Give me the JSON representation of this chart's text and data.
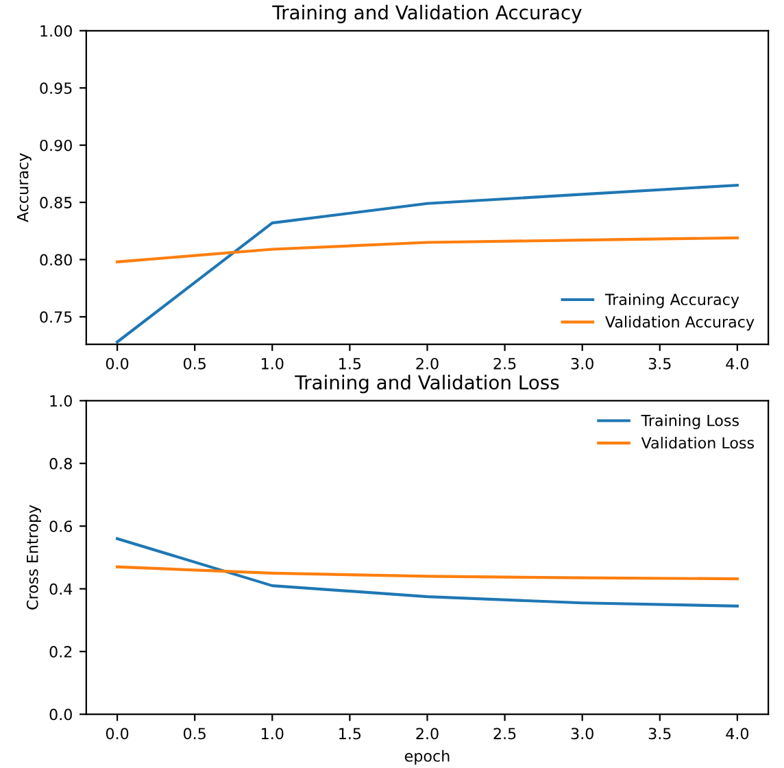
{
  "chart_data": [
    {
      "type": "line",
      "title": "Training and Validation Accuracy",
      "ylabel": "Accuracy",
      "x": [
        0,
        1,
        2,
        3,
        4
      ],
      "series": [
        {
          "name": "Training Accuracy",
          "color": "#1f77b4",
          "values": [
            0.728,
            0.832,
            0.849,
            0.857,
            0.865
          ]
        },
        {
          "name": "Validation Accuracy",
          "color": "#ff7f0e",
          "values": [
            0.798,
            0.809,
            0.815,
            0.817,
            0.819
          ]
        }
      ],
      "xlim": [
        -0.2,
        4.2
      ],
      "xticks": [
        {
          "value": 0,
          "label": "0.0"
        },
        0.5,
        {
          "value": 1,
          "label": "1.0"
        },
        1.5,
        {
          "value": 2,
          "label": "2.0"
        },
        2.5,
        {
          "value": 3,
          "label": "3.0"
        },
        3.5,
        {
          "value": 4,
          "label": "4.0"
        }
      ],
      "ylim": [
        0.726,
        1.0
      ],
      "yticks": [
        0.75,
        {
          "value": 0.8,
          "label": "0.80"
        },
        0.85,
        {
          "value": 0.9,
          "label": "0.90"
        },
        0.95,
        {
          "value": 1,
          "label": "1.00"
        }
      ],
      "legend": "bottom right",
      "grid": false
    },
    {
      "type": "line",
      "title": "Training and Validation Loss",
      "ylabel": "Cross Entropy",
      "xlabel": "epoch",
      "x": [
        0,
        1,
        2,
        3,
        4
      ],
      "series": [
        {
          "name": "Training Loss",
          "color": "#1f77b4",
          "values": [
            0.56,
            0.41,
            0.375,
            0.355,
            0.345
          ]
        },
        {
          "name": "Validation Loss",
          "color": "#ff7f0e",
          "values": [
            0.47,
            0.45,
            0.44,
            0.435,
            0.432
          ]
        }
      ],
      "xlim": [
        -0.2,
        4.2
      ],
      "xticks": [
        {
          "value": 0,
          "label": "0.0"
        },
        0.5,
        {
          "value": 1,
          "label": "1.0"
        },
        1.5,
        {
          "value": 2,
          "label": "2.0"
        },
        2.5,
        {
          "value": 3,
          "label": "3.0"
        },
        3.5,
        {
          "value": 4,
          "label": "4.0"
        }
      ],
      "ylim": [
        0,
        1.0
      ],
      "yticks": [
        {
          "value": 0,
          "label": "0.0"
        },
        0.2,
        0.4,
        0.6,
        0.8,
        {
          "value": 1,
          "label": "1.0"
        }
      ],
      "legend": "top right",
      "grid": false
    }
  ]
}
